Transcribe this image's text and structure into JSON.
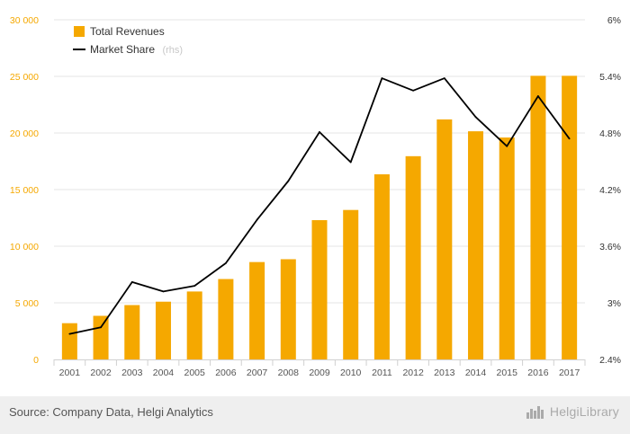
{
  "chart_data": {
    "type": "bar",
    "categories": [
      "2001",
      "2002",
      "2003",
      "2004",
      "2005",
      "2006",
      "2007",
      "2008",
      "2009",
      "2010",
      "2011",
      "2012",
      "2013",
      "2014",
      "2015",
      "2016",
      "2017"
    ],
    "series": [
      {
        "name": "Total Revenues",
        "type": "bar",
        "axis": "left",
        "color": "#f5a800",
        "values": [
          3200,
          3850,
          4800,
          5100,
          6000,
          7100,
          8600,
          8850,
          12300,
          13200,
          16350,
          17950,
          21200,
          20150,
          19600,
          25050,
          25050
        ]
      },
      {
        "name": "Market Share",
        "name_suffix": "(rhs)",
        "type": "line",
        "axis": "right",
        "color": "#000000",
        "values": [
          2.67,
          2.74,
          3.22,
          3.12,
          3.18,
          3.42,
          3.88,
          4.29,
          4.81,
          4.49,
          5.38,
          5.25,
          5.38,
          4.97,
          4.66,
          5.19,
          4.74
        ]
      }
    ],
    "y_left": {
      "min": 0,
      "max": 30000,
      "ticks": [
        "0",
        "5 000",
        "10 000",
        "15 000",
        "20 000",
        "25 000",
        "30 000"
      ],
      "color": "#f5a800"
    },
    "y_right": {
      "min": 2.4,
      "max": 6.0,
      "ticks": [
        "2.4%",
        "3%",
        "3.6%",
        "4.2%",
        "4.8%",
        "5.4%",
        "6%"
      ],
      "color": "#333333"
    },
    "grid": true,
    "legend_position": "top-left"
  },
  "footer": {
    "source": "Source: Company Data, Helgi Analytics",
    "brand": "HelgiLibrary",
    "brand_icon": "bar-chart-logo-icon"
  }
}
